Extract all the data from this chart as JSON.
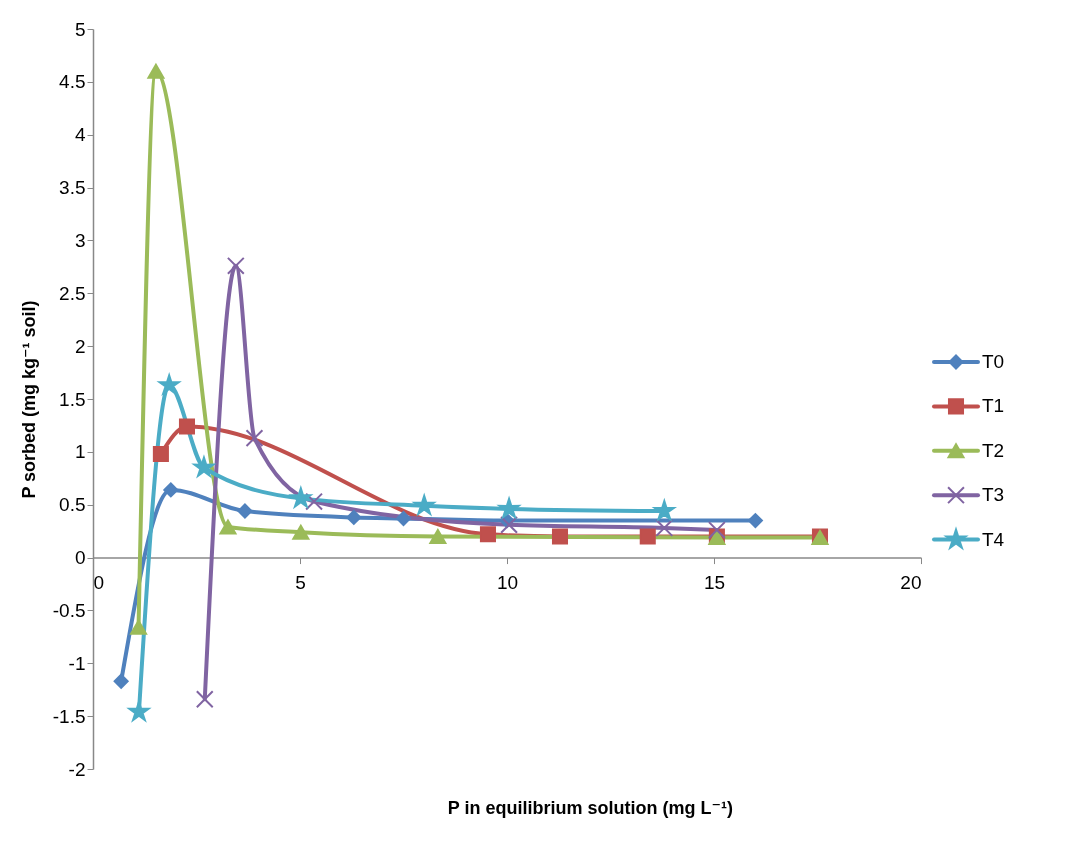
{
  "chart_data": {
    "type": "line",
    "xlabel": "P in equilibrium solution (mg L⁻¹)",
    "ylabel": "P sorbed (mg kg⁻¹ soil)",
    "xlim": [
      0,
      20
    ],
    "xticks": [
      0,
      5,
      10,
      15,
      20
    ],
    "ylim": [
      -2,
      5
    ],
    "yticks": [
      -2,
      -1.5,
      -1,
      -0.5,
      0,
      0.5,
      1,
      1.5,
      2,
      2.5,
      3,
      3.5,
      4,
      4.5,
      5
    ],
    "grid": false,
    "legend": "right",
    "line_style": "solid",
    "series": [
      {
        "name": "T0",
        "color": "#4f81bd",
        "marker": "diamond",
        "x": [
          0.68,
          1.88,
          3.67,
          6.3,
          7.5,
          10.0,
          16.0
        ],
        "values": [
          -1.17,
          0.64,
          0.44,
          0.38,
          0.37,
          0.35,
          0.35
        ]
      },
      {
        "name": "T1",
        "color": "#c0504d",
        "marker": "square",
        "x": [
          1.64,
          2.27,
          9.54,
          11.28,
          13.4,
          15.07,
          17.56
        ],
        "values": [
          0.98,
          1.24,
          0.22,
          0.2,
          0.2,
          0.2,
          0.2
        ]
      },
      {
        "name": "T2",
        "color": "#9bbb59",
        "marker": "triangle",
        "x": [
          1.1,
          1.52,
          3.26,
          5.02,
          8.33,
          15.07,
          17.56
        ],
        "values": [
          -0.66,
          4.6,
          0.29,
          0.24,
          0.2,
          0.19,
          0.19
        ]
      },
      {
        "name": "T3",
        "color": "#8064a2",
        "marker": "cross",
        "x": [
          2.7,
          3.45,
          3.9,
          5.34,
          10.05,
          13.8,
          15.07
        ],
        "values": [
          -1.34,
          2.76,
          1.13,
          0.53,
          0.31,
          0.28,
          0.26
        ]
      },
      {
        "name": "T4",
        "color": "#4bacc6",
        "marker": "star",
        "x": [
          1.11,
          1.84,
          2.68,
          5.02,
          8.0,
          10.05,
          13.8
        ],
        "values": [
          -1.46,
          1.63,
          0.85,
          0.56,
          0.49,
          0.46,
          0.44
        ]
      }
    ]
  }
}
